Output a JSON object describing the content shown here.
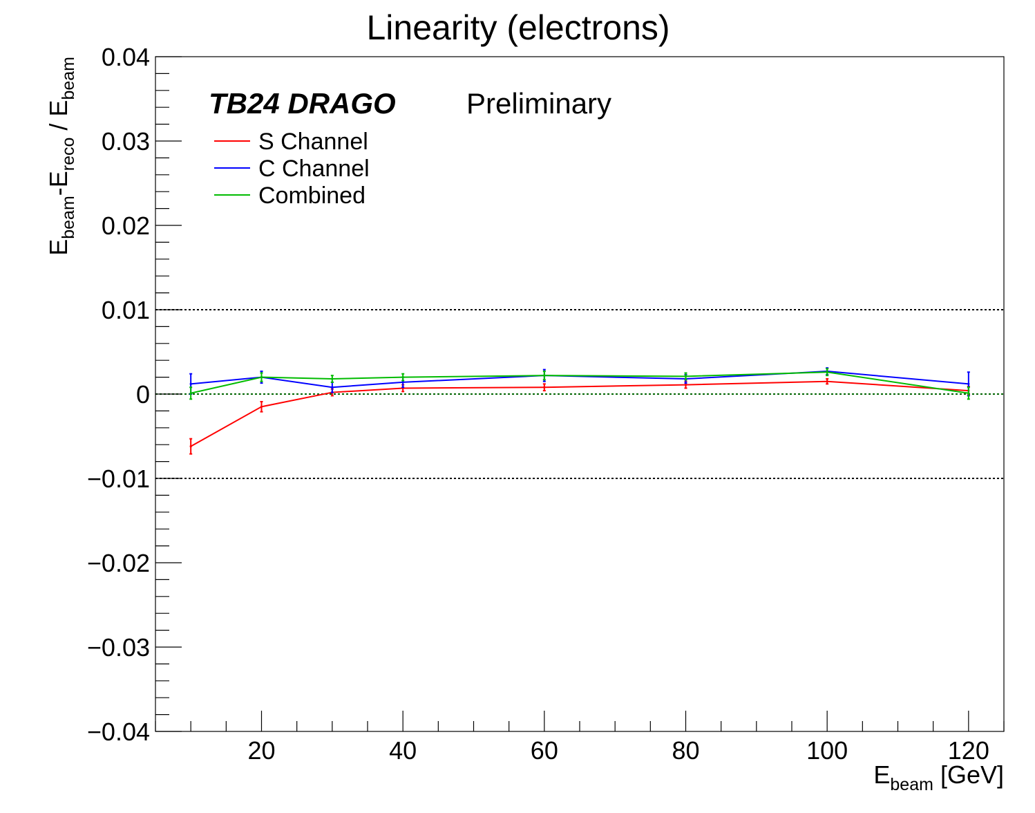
{
  "chart_data": {
    "type": "line",
    "title": "Linearity (electrons)",
    "xlabel": {
      "base": "E",
      "sub": "beam",
      "suffix": " [GeV]"
    },
    "ylabel": "E_beam-E_reco / E_beam",
    "xlim": [
      5,
      125
    ],
    "ylim": [
      -0.04,
      0.04
    ],
    "x_ticks": [
      20,
      40,
      60,
      80,
      100,
      120
    ],
    "x_tick_labels": [
      "20",
      "40",
      "60",
      "80",
      "100",
      "120"
    ],
    "y_ticks": [
      -0.04,
      -0.03,
      -0.02,
      -0.01,
      0,
      0.01,
      0.02,
      0.03,
      0.04
    ],
    "y_tick_labels": [
      "−0.04",
      "−0.03",
      "−0.02",
      "−0.01",
      "0",
      "0.01",
      "0.02",
      "0.03",
      "0.04"
    ],
    "reference_lines": [
      {
        "y": 0.01,
        "color": "#000000",
        "style": "dotted"
      },
      {
        "y": 0,
        "color": "#006400",
        "style": "dotted"
      },
      {
        "y": -0.01,
        "color": "#000000",
        "style": "dotted"
      }
    ],
    "annotations": {
      "experiment": "TB24 DRAGO",
      "status": "Preliminary"
    },
    "legend_position": "top-left",
    "grid": false,
    "series": [
      {
        "name": "S Channel",
        "color": "#ff0000",
        "x": [
          10,
          20,
          30,
          40,
          60,
          80,
          100,
          120
        ],
        "y": [
          -0.0062,
          -0.0015,
          0.0002,
          0.0007,
          0.0008,
          0.0011,
          0.0015,
          0.0004
        ],
        "err": [
          0.0009,
          0.0006,
          0.0004,
          0.0004,
          0.0004,
          0.0004,
          0.0003,
          0.0005
        ]
      },
      {
        "name": "C Channel",
        "color": "#0000ff",
        "x": [
          10,
          20,
          30,
          40,
          60,
          80,
          100,
          120
        ],
        "y": [
          0.0012,
          0.002,
          0.0008,
          0.0014,
          0.0022,
          0.0018,
          0.0027,
          0.0012
        ],
        "err": [
          0.0012,
          0.0007,
          0.0006,
          0.0006,
          0.0007,
          0.0005,
          0.0004,
          0.0014
        ]
      },
      {
        "name": "Combined",
        "color": "#00bb00",
        "x": [
          10,
          20,
          30,
          40,
          60,
          80,
          100,
          120
        ],
        "y": [
          0.0001,
          0.002,
          0.0018,
          0.002,
          0.0022,
          0.0021,
          0.0026,
          0.0001
        ],
        "err": [
          0.0007,
          0.0005,
          0.0004,
          0.0004,
          0.0005,
          0.0004,
          0.0004,
          0.0007
        ]
      }
    ]
  }
}
